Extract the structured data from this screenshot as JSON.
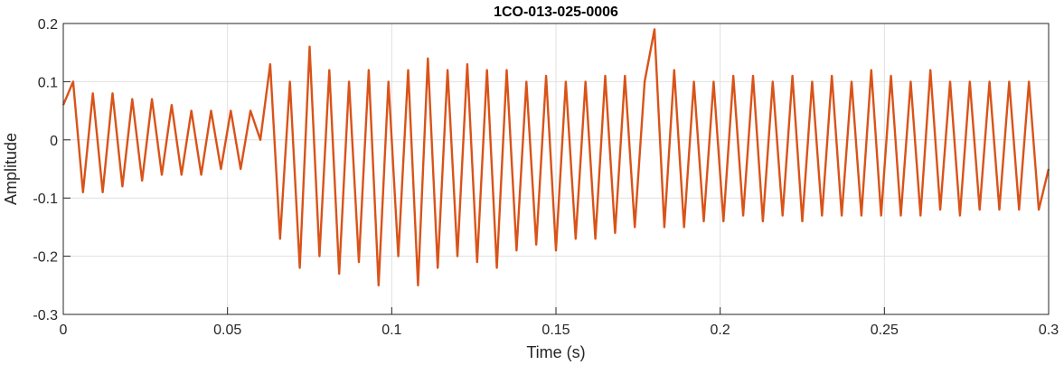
{
  "chart_data": {
    "type": "line",
    "title": "1CO-013-025-0006",
    "xlabel": "Time (s)",
    "ylabel": "Amplitude",
    "xlim": [
      0,
      0.3
    ],
    "ylim": [
      -0.3,
      0.2
    ],
    "xticks": [
      0,
      0.05,
      0.1,
      0.15,
      0.2,
      0.25,
      0.3
    ],
    "xtick_labels": [
      "0",
      "0.05",
      "0.1",
      "0.15",
      "0.2",
      "0.25",
      "0.3"
    ],
    "yticks": [
      -0.3,
      -0.2,
      -0.1,
      0,
      0.1,
      0.2
    ],
    "ytick_labels": [
      "-0.3",
      "-0.2",
      "-0.1",
      "0",
      "0.1",
      "0.2"
    ],
    "grid": true,
    "line_color": "#D95319",
    "series": [
      {
        "x": [
          0,
          0.003,
          0.006,
          0.009,
          0.012,
          0.015,
          0.018,
          0.021,
          0.024,
          0.027,
          0.03,
          0.033,
          0.036,
          0.039,
          0.042,
          0.045,
          0.048,
          0.051,
          0.054,
          0.057,
          0.06,
          0.063,
          0.066,
          0.069,
          0.072,
          0.075,
          0.078,
          0.081,
          0.084,
          0.087,
          0.09,
          0.093,
          0.096,
          0.099,
          0.102,
          0.105,
          0.108,
          0.111,
          0.114,
          0.117,
          0.12,
          0.123,
          0.126,
          0.129,
          0.132,
          0.135,
          0.138,
          0.141,
          0.144,
          0.147,
          0.15,
          0.153,
          0.156,
          0.159,
          0.162,
          0.165,
          0.168,
          0.171,
          0.174,
          0.177,
          0.18,
          0.183,
          0.186,
          0.189,
          0.192,
          0.195,
          0.198,
          0.201,
          0.204,
          0.207,
          0.21,
          0.213,
          0.216,
          0.219,
          0.222,
          0.225,
          0.228,
          0.231,
          0.234,
          0.237,
          0.24,
          0.243,
          0.246,
          0.249,
          0.252,
          0.255,
          0.258,
          0.261,
          0.264,
          0.267,
          0.27,
          0.273,
          0.276,
          0.279,
          0.282,
          0.285,
          0.288,
          0.291,
          0.294,
          0.297,
          0.3
        ],
        "y": [
          0.06,
          0.1,
          -0.09,
          0.08,
          -0.09,
          0.08,
          -0.08,
          0.07,
          -0.07,
          0.07,
          -0.06,
          0.06,
          -0.06,
          0.05,
          -0.06,
          0.05,
          -0.05,
          0.05,
          -0.05,
          0.05,
          0.0,
          0.13,
          -0.17,
          0.1,
          -0.22,
          0.16,
          -0.2,
          0.12,
          -0.23,
          0.1,
          -0.21,
          0.12,
          -0.25,
          0.1,
          -0.2,
          0.12,
          -0.25,
          0.14,
          -0.22,
          0.12,
          -0.2,
          0.13,
          -0.21,
          0.12,
          -0.22,
          0.12,
          -0.19,
          0.1,
          -0.18,
          0.11,
          -0.19,
          0.1,
          -0.17,
          0.1,
          -0.17,
          0.11,
          -0.16,
          0.11,
          -0.15,
          0.1,
          0.19,
          -0.15,
          0.12,
          -0.15,
          0.1,
          -0.14,
          0.1,
          -0.14,
          0.11,
          -0.13,
          0.11,
          -0.14,
          0.1,
          -0.13,
          0.11,
          -0.14,
          0.1,
          -0.13,
          0.11,
          -0.13,
          0.1,
          -0.13,
          0.12,
          -0.13,
          0.11,
          -0.13,
          0.1,
          -0.13,
          0.12,
          -0.12,
          0.1,
          -0.13,
          0.1,
          -0.12,
          0.1,
          -0.12,
          0.1,
          -0.12,
          0.1,
          -0.12,
          -0.05
        ]
      }
    ]
  }
}
